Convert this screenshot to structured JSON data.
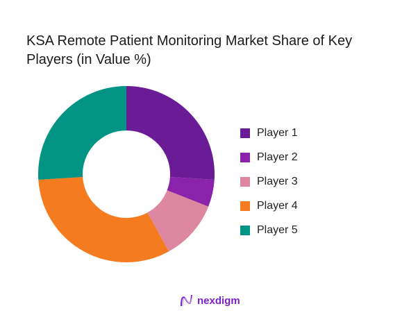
{
  "chart_data": {
    "type": "pie",
    "donut": true,
    "title": "KSA Remote Patient Monitoring Market Share of Key Players (in Value %)",
    "categories": [
      "Player 1",
      "Player 2",
      "Player 3",
      "Player 4",
      "Player 5"
    ],
    "values": [
      26,
      5,
      11,
      32,
      26
    ],
    "colors": [
      "#6a1b96",
      "#8a22aa",
      "#de87a0",
      "#f47b20",
      "#019384"
    ],
    "legend_position": "right"
  },
  "brand": {
    "name": "nexdigm"
  }
}
